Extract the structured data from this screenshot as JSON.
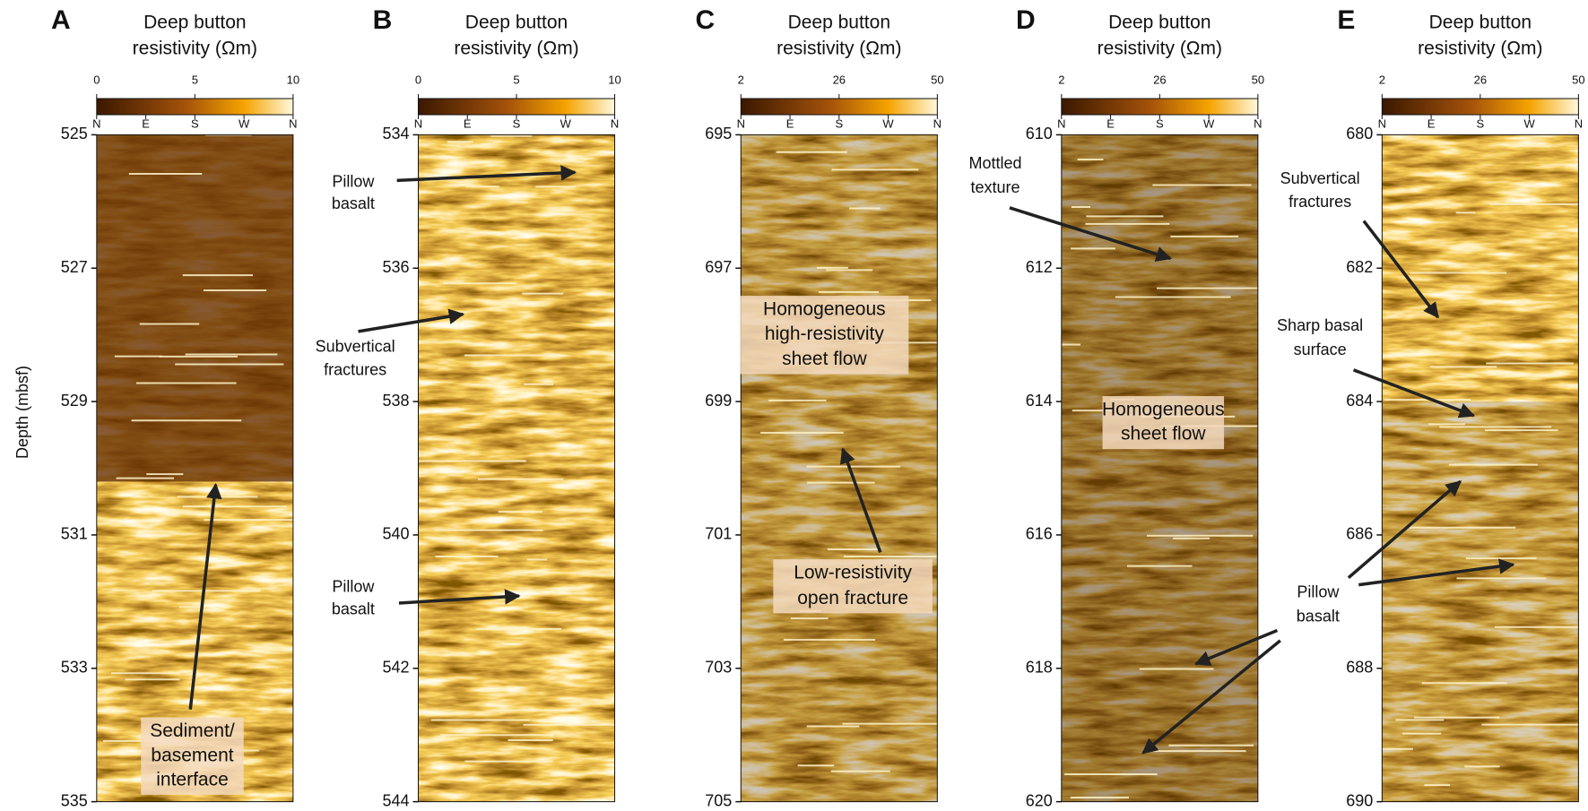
{
  "y_label": "Depth (mbsf)",
  "panels": [
    {
      "label": "A",
      "colorbar_title": [
        "Deep button",
        "resistivity (Ωm)"
      ],
      "colorbar_range": [
        0,
        10
      ],
      "colorbar_ticks": [
        0,
        5,
        10
      ],
      "azimuth_labels": [
        "N",
        "E",
        "S",
        "W",
        "N"
      ],
      "depth_range": [
        525,
        535
      ],
      "depth_ticks": [
        525,
        527,
        529,
        531,
        533,
        535
      ],
      "annotations": [
        {
          "lines": [
            "Sediment/",
            "basement",
            "interface"
          ]
        }
      ]
    },
    {
      "label": "B",
      "colorbar_title": [
        "Deep button",
        "resistivity (Ωm)"
      ],
      "colorbar_range": [
        0,
        10
      ],
      "colorbar_ticks": [
        0,
        5,
        10
      ],
      "azimuth_labels": [
        "N",
        "E",
        "S",
        "W",
        "N"
      ],
      "depth_range": [
        534,
        544
      ],
      "depth_ticks": [
        534,
        536,
        538,
        540,
        542,
        544
      ],
      "annotations": [
        {
          "lines": [
            "Pillow",
            "basalt"
          ]
        },
        {
          "lines": [
            "Subvertical",
            "fractures"
          ]
        },
        {
          "lines": [
            "Pillow",
            "basalt"
          ]
        }
      ]
    },
    {
      "label": "C",
      "colorbar_title": [
        "Deep button",
        "resistivity (Ωm)"
      ],
      "colorbar_range": [
        2,
        50
      ],
      "colorbar_ticks": [
        2,
        26,
        50
      ],
      "azimuth_labels": [
        "N",
        "E",
        "S",
        "W",
        "N"
      ],
      "depth_range": [
        695,
        705
      ],
      "depth_ticks": [
        695,
        697,
        699,
        701,
        703,
        705
      ],
      "annotations": [
        {
          "lines": [
            "Homogeneous",
            "high-resistivity",
            "sheet flow"
          ]
        },
        {
          "lines": [
            "Low-resistivity",
            "open fracture"
          ]
        }
      ]
    },
    {
      "label": "D",
      "colorbar_title": [
        "Deep button",
        "resistivity (Ωm)"
      ],
      "colorbar_range": [
        2,
        50
      ],
      "colorbar_ticks": [
        2,
        26,
        50
      ],
      "azimuth_labels": [
        "N",
        "E",
        "S",
        "W",
        "N"
      ],
      "depth_range": [
        610,
        620
      ],
      "depth_ticks": [
        610,
        612,
        614,
        616,
        618,
        620
      ],
      "annotations": [
        {
          "lines": [
            "Mottled",
            "texture"
          ]
        },
        {
          "lines": [
            "Homogeneous",
            "sheet flow"
          ]
        }
      ]
    },
    {
      "label": "E",
      "colorbar_title": [
        "Deep button",
        "resistivity (Ωm)"
      ],
      "colorbar_range": [
        2,
        50
      ],
      "colorbar_ticks": [
        2,
        26,
        50
      ],
      "azimuth_labels": [
        "N",
        "E",
        "S",
        "W",
        "N"
      ],
      "depth_range": [
        680,
        690
      ],
      "depth_ticks": [
        680,
        682,
        684,
        686,
        688,
        690
      ],
      "annotations": [
        {
          "lines": [
            "Subvertical",
            "fractures"
          ]
        },
        {
          "lines": [
            "Sharp basal",
            "surface"
          ]
        },
        {
          "lines": [
            "Pillow",
            "basalt"
          ]
        }
      ]
    }
  ]
}
